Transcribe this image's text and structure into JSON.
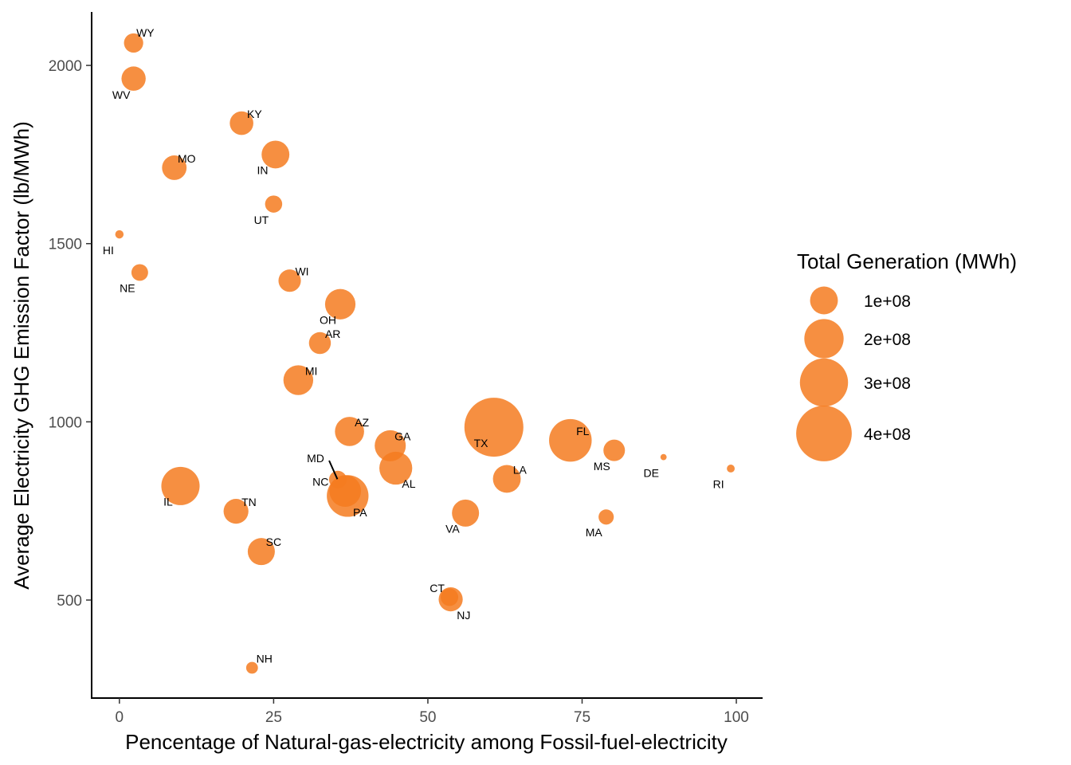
{
  "chart_data": {
    "type": "scatter",
    "title": "",
    "xlabel": "Pencentage of Natural-gas-electricity among Fossil-fuel-electricity",
    "ylabel": "Average Electricity GHG Emission Factor (lb/MWh)",
    "xlim": [
      -4.5,
      104
    ],
    "ylim": [
      225,
      2150
    ],
    "x_ticks": [
      0,
      25,
      50,
      75,
      100
    ],
    "y_ticks": [
      500,
      1000,
      1500,
      2000
    ],
    "grid": false,
    "point_color": "#F47B20",
    "size_variable": "Total Generation (MWh)",
    "legend": {
      "title": "Total Generation (MWh)",
      "placement": "right",
      "entries": [
        {
          "label": "1e+08",
          "value": 100000000
        },
        {
          "label": "2e+08",
          "value": 200000000
        },
        {
          "label": "3e+08",
          "value": 300000000
        },
        {
          "label": "4e+08",
          "value": 400000000
        }
      ]
    },
    "points": [
      {
        "label": "WY",
        "x": 2.3,
        "y": 2063,
        "size": 48000000,
        "lx": 4.2,
        "ly": 2092
      },
      {
        "label": "WV",
        "x": 2.3,
        "y": 1963,
        "size": 76000000,
        "lx": 0.3,
        "ly": 1918
      },
      {
        "label": "KY",
        "x": 19.8,
        "y": 1838,
        "size": 72000000,
        "lx": 21.9,
        "ly": 1864
      },
      {
        "label": "IN",
        "x": 25.3,
        "y": 1750,
        "size": 100000000,
        "lx": 23.2,
        "ly": 1706
      },
      {
        "label": "MO",
        "x": 8.9,
        "y": 1713,
        "size": 78000000,
        "lx": 10.9,
        "ly": 1739
      },
      {
        "label": "UT",
        "x": 25.0,
        "y": 1611,
        "size": 38000000,
        "lx": 23.0,
        "ly": 1567
      },
      {
        "label": "HI",
        "x": 0.0,
        "y": 1526,
        "size": 9000000,
        "lx": -1.8,
        "ly": 1482
      },
      {
        "label": "NE",
        "x": 3.3,
        "y": 1419,
        "size": 36000000,
        "lx": 1.3,
        "ly": 1375
      },
      {
        "label": "WI",
        "x": 27.6,
        "y": 1396,
        "size": 65000000,
        "lx": 29.6,
        "ly": 1422
      },
      {
        "label": "OH",
        "x": 35.8,
        "y": 1330,
        "size": 120000000,
        "lx": 33.8,
        "ly": 1286
      },
      {
        "label": "AR",
        "x": 32.5,
        "y": 1221,
        "size": 62000000,
        "lx": 34.6,
        "ly": 1247
      },
      {
        "label": "MI",
        "x": 29.0,
        "y": 1117,
        "size": 115000000,
        "lx": 31.1,
        "ly": 1143
      },
      {
        "label": "AZ",
        "x": 37.3,
        "y": 973,
        "size": 110000000,
        "lx": 39.3,
        "ly": 999
      },
      {
        "label": "GA",
        "x": 43.9,
        "y": 933,
        "size": 125000000,
        "lx": 45.9,
        "ly": 960
      },
      {
        "label": "TX",
        "x": 60.7,
        "y": 985,
        "size": 450000000,
        "lx": 58.6,
        "ly": 941
      },
      {
        "label": "FL",
        "x": 73.1,
        "y": 948,
        "size": 235000000,
        "lx": 75.1,
        "ly": 974
      },
      {
        "label": "MS",
        "x": 80.2,
        "y": 920,
        "size": 60000000,
        "lx": 78.2,
        "ly": 876
      },
      {
        "label": "DE",
        "x": 88.2,
        "y": 901,
        "size": 5000000,
        "lx": 86.2,
        "ly": 857
      },
      {
        "label": "RI",
        "x": 99.1,
        "y": 869,
        "size": 8000000,
        "lx": 97.1,
        "ly": 825
      },
      {
        "label": "AL",
        "x": 44.8,
        "y": 870,
        "size": 140000000,
        "lx": 46.9,
        "ly": 826
      },
      {
        "label": "LA",
        "x": 62.8,
        "y": 840,
        "size": 100000000,
        "lx": 64.9,
        "ly": 866
      },
      {
        "label": "MD",
        "x": 35.4,
        "y": 838,
        "size": 40000000,
        "lx": 31.8,
        "ly": 898
      },
      {
        "label": "NC",
        "x": 36.6,
        "y": 806,
        "size": 130000000,
        "lx": 32.6,
        "ly": 832
      },
      {
        "label": "PA",
        "x": 37.0,
        "y": 792,
        "size": 225000000,
        "lx": 39.0,
        "ly": 746
      },
      {
        "label": "IL",
        "x": 9.9,
        "y": 820,
        "size": 190000000,
        "lx": 7.9,
        "ly": 776
      },
      {
        "label": "TN",
        "x": 18.9,
        "y": 749,
        "size": 80000000,
        "lx": 21.0,
        "ly": 775
      },
      {
        "label": "VA",
        "x": 56.1,
        "y": 744,
        "size": 95000000,
        "lx": 54.0,
        "ly": 700
      },
      {
        "label": "MA",
        "x": 78.9,
        "y": 733,
        "size": 30000000,
        "lx": 76.9,
        "ly": 690
      },
      {
        "label": "SC",
        "x": 23.0,
        "y": 636,
        "size": 95000000,
        "lx": 25.0,
        "ly": 663
      },
      {
        "label": "CT",
        "x": 53.5,
        "y": 508,
        "size": 40000000,
        "lx": 51.5,
        "ly": 534
      },
      {
        "label": "NJ",
        "x": 53.7,
        "y": 502,
        "size": 75000000,
        "lx": 55.8,
        "ly": 458
      },
      {
        "label": "NH",
        "x": 21.5,
        "y": 310,
        "size": 18000000,
        "lx": 23.5,
        "ly": 336
      }
    ]
  }
}
